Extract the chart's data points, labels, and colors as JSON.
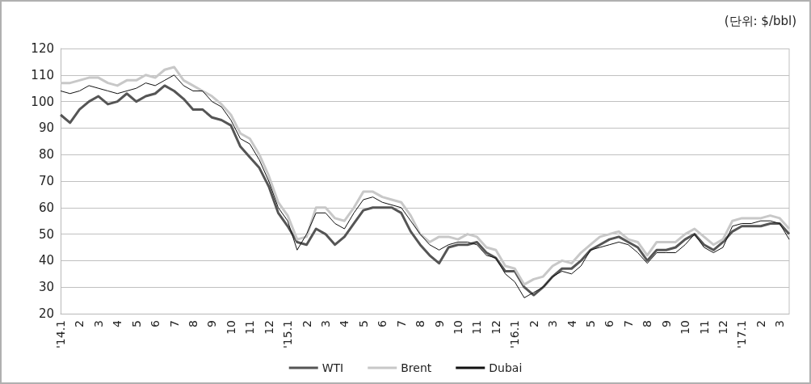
{
  "chart_data": {
    "type": "line",
    "annotations": [
      "(단위: $/bbl)"
    ],
    "categories": [
      "'14.1",
      null,
      "2",
      null,
      "3",
      null,
      "4",
      null,
      "5",
      null,
      "6",
      null,
      "7",
      null,
      "8",
      null,
      "9",
      null,
      "10",
      null,
      "11",
      null,
      "12",
      null,
      "'15.1",
      null,
      "2",
      null,
      "3",
      null,
      "4",
      null,
      "5",
      null,
      "6",
      null,
      "7",
      null,
      "8",
      null,
      "9",
      null,
      "10",
      null,
      "11",
      null,
      "12",
      null,
      "'16.1",
      null,
      "2",
      null,
      "3",
      null,
      "4",
      null,
      "5",
      null,
      "6",
      null,
      "7",
      null,
      "8",
      null,
      "9",
      null,
      "10",
      null,
      "11",
      null,
      "12",
      null,
      "'17.1",
      null,
      "2",
      null,
      "3",
      null
    ],
    "series": [
      {
        "name": "WTI",
        "color": "#555555",
        "values": [
          95,
          92,
          97,
          100,
          102,
          99,
          100,
          103,
          100,
          102,
          103,
          106,
          104,
          101,
          97,
          97,
          94,
          93,
          91,
          83,
          79,
          75,
          68,
          58,
          53,
          47,
          46,
          52,
          50,
          46,
          49,
          54,
          59,
          60,
          60,
          60,
          58,
          51,
          46,
          42,
          39,
          45,
          46,
          46,
          47,
          43,
          41,
          36,
          36,
          30,
          27,
          30,
          34,
          37,
          37,
          40,
          44,
          46,
          48,
          49,
          47,
          45,
          40,
          44,
          44,
          45,
          48,
          50,
          46,
          44,
          47,
          51,
          53,
          53,
          53,
          54,
          54,
          50
        ]
      },
      {
        "name": "Brent",
        "color": "#c8c8c8",
        "values": [
          107,
          107,
          108,
          109,
          109,
          107,
          106,
          108,
          108,
          110,
          109,
          112,
          113,
          108,
          106,
          104,
          102,
          99,
          95,
          88,
          86,
          80,
          72,
          62,
          57,
          48,
          49,
          60,
          60,
          56,
          55,
          60,
          66,
          66,
          64,
          63,
          62,
          57,
          50,
          47,
          49,
          49,
          48,
          50,
          49,
          45,
          44,
          38,
          37,
          31,
          33,
          34,
          38,
          40,
          39,
          43,
          46,
          49,
          50,
          51,
          48,
          47,
          42,
          47,
          47,
          47,
          50,
          52,
          49,
          46,
          48,
          55,
          56,
          56,
          56,
          57,
          56,
          52
        ]
      },
      {
        "name": "Dubai",
        "color": "#111111",
        "values": [
          104,
          103,
          104,
          106,
          105,
          104,
          103,
          104,
          105,
          107,
          106,
          108,
          110,
          106,
          104,
          104,
          100,
          98,
          93,
          86,
          84,
          78,
          70,
          60,
          55,
          44,
          50,
          58,
          58,
          54,
          52,
          58,
          63,
          64,
          62,
          61,
          60,
          55,
          50,
          46,
          44,
          46,
          47,
          47,
          46,
          42,
          41,
          35,
          32,
          26,
          28,
          30,
          34,
          36,
          35,
          38,
          44,
          45,
          46,
          47,
          46,
          43,
          39,
          43,
          43,
          43,
          46,
          50,
          45,
          43,
          45,
          53,
          54,
          54,
          55,
          55,
          54,
          48
        ]
      }
    ],
    "ylim": [
      20,
      120
    ],
    "yticks": [
      20,
      30,
      40,
      50,
      60,
      70,
      80,
      90,
      100,
      110,
      120
    ],
    "grid": "y",
    "legend": "bottom",
    "marker": "none"
  }
}
